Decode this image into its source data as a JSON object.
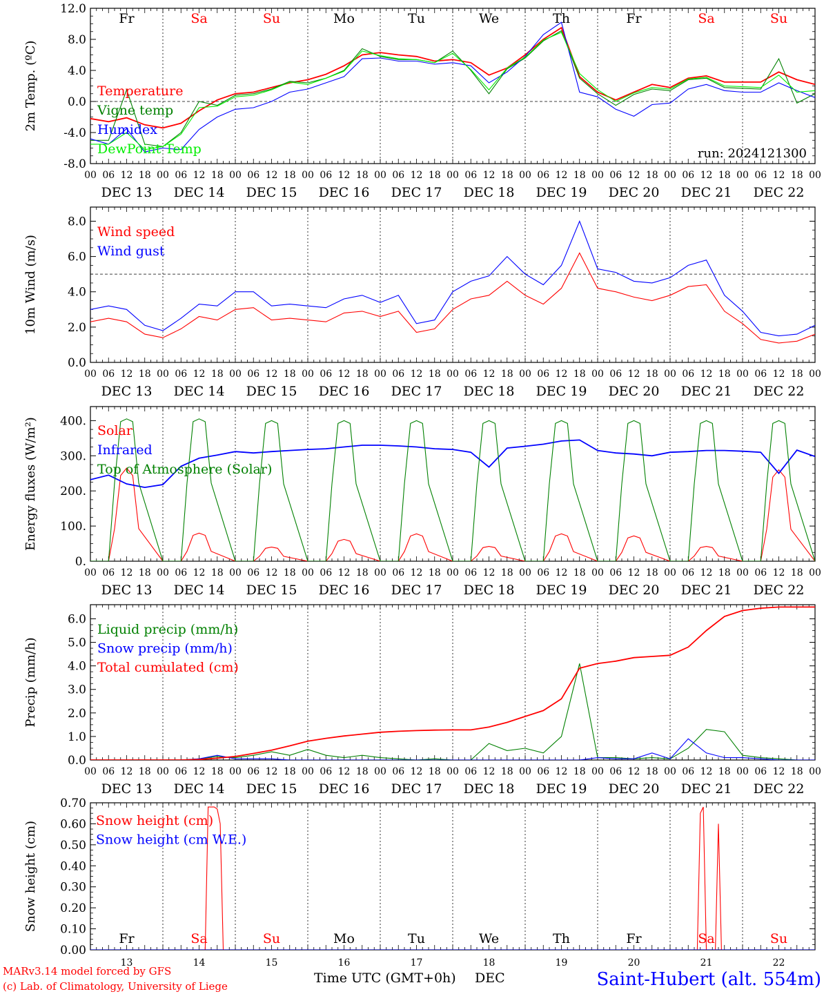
{
  "colors": {
    "red": "#ff0000",
    "green": "#008000",
    "blue": "#0000ff",
    "lime": "#00ee00",
    "axis": "#000000",
    "weekend": "#ff0000"
  },
  "days": {
    "names": [
      "Fr",
      "Sa",
      "Su",
      "Mo",
      "Tu",
      "We",
      "Th",
      "Fr",
      "Sa",
      "Su"
    ],
    "weekend_flags": [
      false,
      true,
      true,
      false,
      false,
      false,
      false,
      false,
      true,
      true
    ],
    "date_labels": [
      "DEC 13",
      "DEC 14",
      "DEC 15",
      "DEC 16",
      "DEC 17",
      "DEC 18",
      "DEC 19",
      "DEC 20",
      "DEC 21",
      "DEC 22"
    ],
    "day_numbers": [
      "13",
      "14",
      "15",
      "16",
      "17",
      "18",
      "19",
      "20",
      "21",
      "22"
    ],
    "hour_labels": [
      "00",
      "06",
      "12",
      "18"
    ],
    "final_hour_label": "00"
  },
  "footer": {
    "credit_line1": "MARv3.14 model forced by GFS",
    "credit_line2": "(c) Lab. of Climatology, University of Liege",
    "xlabel": "Time UTC (GMT+0h)",
    "month": "DEC",
    "station": "Saint-Hubert (alt. 554m)"
  },
  "chart_data": [
    {
      "type": "line",
      "id": "temp",
      "ylabel": "2m Temp. (ºC)",
      "ylim": [
        -8,
        12
      ],
      "yticks": [
        "-8.0",
        "-4.0",
        "0.0",
        "4.0",
        "8.0",
        "12.0"
      ],
      "yticks_values": [
        -8,
        -4,
        0,
        4,
        8,
        12
      ],
      "reference_line": 0,
      "annotation": "run: 2024121300",
      "x": [
        0,
        6,
        12,
        18,
        24,
        30,
        36,
        42,
        48,
        54,
        60,
        66,
        72,
        78,
        84,
        90,
        96,
        102,
        108,
        114,
        120,
        126,
        132,
        138,
        144,
        150,
        156,
        162,
        168,
        174,
        180,
        186,
        192,
        198,
        204,
        210,
        216,
        222,
        228,
        234,
        240
      ],
      "series": [
        {
          "name": "Temperature",
          "color": "#ff0000",
          "values": [
            -2.2,
            -2.6,
            -2.1,
            -3.0,
            -3.4,
            -2.8,
            -1.2,
            0.2,
            1.0,
            1.2,
            1.8,
            2.4,
            2.8,
            3.5,
            4.6,
            6.0,
            6.3,
            6.0,
            5.8,
            5.2,
            5.4,
            5.0,
            3.4,
            4.3,
            6.0,
            8.0,
            9.5,
            3.2,
            1.2,
            0.2,
            1.2,
            2.2,
            1.8,
            3.0,
            3.3,
            2.5,
            2.5,
            2.5,
            3.8,
            2.8,
            2.2
          ]
        },
        {
          "name": "Vigne temp",
          "color": "#008000",
          "values": [
            -5.0,
            -5.0,
            1.5,
            -5.5,
            -5.8,
            -4.0,
            0.0,
            -0.5,
            0.8,
            1.0,
            1.6,
            2.6,
            2.4,
            3.0,
            4.0,
            6.8,
            5.8,
            5.4,
            5.4,
            5.0,
            6.5,
            4.0,
            1.0,
            4.2,
            5.6,
            7.8,
            9.1,
            3.0,
            1.0,
            -0.5,
            0.9,
            1.6,
            1.4,
            2.8,
            3.0,
            1.8,
            1.7,
            1.6,
            5.5,
            -0.2,
            1.0
          ]
        },
        {
          "name": "Humidex",
          "color": "#0000ff",
          "values": [
            -4.8,
            -5.5,
            -3.5,
            -6.5,
            -6.0,
            -6.2,
            -3.6,
            -2.0,
            -1.0,
            -0.8,
            0.0,
            1.2,
            1.6,
            2.4,
            3.2,
            5.5,
            5.6,
            5.2,
            5.2,
            4.8,
            5.0,
            4.6,
            2.4,
            3.8,
            5.8,
            8.6,
            10.2,
            1.2,
            0.6,
            -1.0,
            -1.9,
            -0.4,
            -0.2,
            1.6,
            2.2,
            1.4,
            1.2,
            1.2,
            2.4,
            1.4,
            0.5
          ]
        },
        {
          "name": "DewPoint Temp",
          "color": "#00ee00",
          "values": [
            -5.5,
            -5.5,
            -4.0,
            -6.2,
            -5.8,
            -4.2,
            -0.8,
            -0.6,
            0.6,
            0.8,
            1.5,
            2.5,
            2.2,
            3.0,
            3.9,
            6.5,
            5.9,
            5.5,
            5.4,
            5.0,
            6.2,
            4.1,
            1.5,
            4.3,
            5.7,
            7.9,
            8.9,
            3.6,
            1.5,
            0.0,
            1.1,
            1.8,
            1.6,
            2.9,
            3.1,
            2.0,
            1.9,
            1.8,
            3.4,
            1.2,
            1.4
          ]
        }
      ]
    },
    {
      "type": "line",
      "id": "wind",
      "ylabel": "10m Wind (m/s)",
      "ylim": [
        0,
        8.8
      ],
      "yticks": [
        "0.0",
        "2.0",
        "4.0",
        "6.0",
        "8.0"
      ],
      "yticks_values": [
        0,
        2,
        4,
        6,
        8
      ],
      "reference_line": 5,
      "x": [
        0,
        6,
        12,
        18,
        24,
        30,
        36,
        42,
        48,
        54,
        60,
        66,
        72,
        78,
        84,
        90,
        96,
        102,
        108,
        114,
        120,
        126,
        132,
        138,
        144,
        150,
        156,
        162,
        168,
        174,
        180,
        186,
        192,
        198,
        204,
        210,
        216,
        222,
        228,
        234,
        240
      ],
      "series": [
        {
          "name": "Wind speed",
          "color": "#ff0000",
          "values": [
            2.3,
            2.5,
            2.3,
            1.6,
            1.4,
            1.9,
            2.6,
            2.4,
            3.0,
            3.1,
            2.4,
            2.5,
            2.4,
            2.3,
            2.8,
            2.9,
            2.6,
            2.9,
            1.7,
            1.9,
            3.0,
            3.6,
            3.8,
            4.6,
            3.8,
            3.3,
            4.2,
            6.2,
            4.2,
            4.0,
            3.7,
            3.5,
            3.8,
            4.3,
            4.4,
            2.9,
            2.2,
            1.3,
            1.1,
            1.2,
            1.6
          ]
        },
        {
          "name": "Wind gust",
          "color": "#0000ff",
          "values": [
            3.0,
            3.2,
            3.0,
            2.1,
            1.8,
            2.5,
            3.3,
            3.2,
            4.0,
            4.0,
            3.2,
            3.3,
            3.2,
            3.1,
            3.6,
            3.8,
            3.4,
            3.8,
            2.2,
            2.4,
            4.0,
            4.6,
            4.9,
            6.0,
            5.0,
            4.4,
            5.5,
            8.0,
            5.3,
            5.1,
            4.6,
            4.5,
            4.8,
            5.5,
            5.8,
            3.8,
            2.9,
            1.7,
            1.5,
            1.6,
            2.1
          ]
        }
      ]
    },
    {
      "type": "line",
      "id": "energy",
      "ylabel": "Energy fluxes (W/m²)",
      "ylim": [
        0,
        440
      ],
      "yticks": [
        "0.",
        "100.",
        "200.",
        "300.",
        "400."
      ],
      "yticks_values": [
        0,
        100,
        200,
        300,
        400
      ],
      "x_solar_shape": [
        0,
        6,
        8,
        10,
        12,
        14,
        16,
        24
      ],
      "series": [
        {
          "name": "Solar",
          "color": "#ff0000",
          "daily_peaks": [
            265,
            80,
            40,
            62,
            78,
            42,
            78,
            72,
            42,
            260
          ]
        },
        {
          "name": "Infrared",
          "color": "#0000ff",
          "x": [
            0,
            6,
            12,
            18,
            24,
            30,
            36,
            42,
            48,
            54,
            60,
            66,
            72,
            78,
            84,
            90,
            96,
            102,
            108,
            114,
            120,
            126,
            132,
            138,
            144,
            150,
            156,
            162,
            168,
            174,
            180,
            186,
            192,
            198,
            204,
            210,
            216,
            222,
            228,
            234,
            240
          ],
          "values": [
            232,
            245,
            220,
            210,
            218,
            270,
            293,
            302,
            312,
            308,
            312,
            315,
            318,
            320,
            325,
            330,
            330,
            328,
            325,
            320,
            318,
            310,
            268,
            322,
            327,
            333,
            342,
            345,
            315,
            308,
            305,
            300,
            310,
            312,
            315,
            315,
            313,
            310,
            250,
            316,
            298
          ]
        },
        {
          "name": "Top of Atmosphere (Solar)",
          "color": "#008000",
          "daily_peaks": [
            405,
            405,
            400,
            400,
            400,
            400,
            400,
            400,
            400,
            400
          ]
        }
      ]
    },
    {
      "type": "line",
      "id": "precip",
      "ylabel": "Precip (mm/h)",
      "ylim": [
        0,
        6.6
      ],
      "yticks": [
        "0.0",
        "1.0",
        "2.0",
        "3.0",
        "4.0",
        "5.0",
        "6.0"
      ],
      "yticks_values": [
        0,
        1,
        2,
        3,
        4,
        5,
        6
      ],
      "x": [
        0,
        6,
        12,
        18,
        24,
        30,
        36,
        42,
        48,
        54,
        60,
        66,
        72,
        78,
        84,
        90,
        96,
        102,
        108,
        114,
        120,
        126,
        132,
        138,
        144,
        150,
        156,
        162,
        168,
        174,
        180,
        186,
        192,
        198,
        204,
        210,
        216,
        222,
        228,
        234,
        240
      ],
      "series": [
        {
          "name": "Liquid precip (mm/h)",
          "color": "#008000",
          "values": [
            0,
            0,
            0,
            0,
            0,
            0,
            0.05,
            0.15,
            0.1,
            0.2,
            0.35,
            0.2,
            0.45,
            0.2,
            0.1,
            0.2,
            0.1,
            0.05,
            0.0,
            0.05,
            0.0,
            0.0,
            0.7,
            0.4,
            0.5,
            0.3,
            1.0,
            4.1,
            0.1,
            0.1,
            0.05,
            0.1,
            0.05,
            0.5,
            1.3,
            1.2,
            0.2,
            0.1,
            0.05,
            0.0,
            0.0
          ]
        },
        {
          "name": "Snow precip (mm/h)",
          "color": "#0000ff",
          "values": [
            0,
            0,
            0,
            0,
            0,
            0,
            0.05,
            0.2,
            0.05,
            0.05,
            0.05,
            0.0,
            0.0,
            0.0,
            0.0,
            0.0,
            0.0,
            0.0,
            0.0,
            0.0,
            0.0,
            0.0,
            0.0,
            0.0,
            0.0,
            0.0,
            0.0,
            0.0,
            0.1,
            0.05,
            0.05,
            0.3,
            0.05,
            0.9,
            0.3,
            0.1,
            0.1,
            0.05,
            0.0,
            0.0,
            0.0
          ]
        },
        {
          "name": "Total cumulated (cm)",
          "color": "#ff0000",
          "values": [
            0,
            0,
            0,
            0,
            0,
            0,
            0.02,
            0.08,
            0.15,
            0.28,
            0.42,
            0.6,
            0.8,
            0.92,
            1.02,
            1.1,
            1.18,
            1.22,
            1.25,
            1.27,
            1.28,
            1.28,
            1.4,
            1.6,
            1.85,
            2.1,
            2.6,
            3.9,
            4.1,
            4.2,
            4.35,
            4.4,
            4.45,
            4.8,
            5.5,
            6.1,
            6.35,
            6.45,
            6.5,
            6.5,
            6.5
          ]
        }
      ]
    },
    {
      "type": "line",
      "id": "snow",
      "ylabel": "Snow height (cm)",
      "ylim": [
        0,
        0.7
      ],
      "yticks": [
        "0.00",
        "0.10",
        "0.20",
        "0.30",
        "0.40",
        "0.50",
        "0.60",
        "0.70"
      ],
      "yticks_values": [
        0,
        0.1,
        0.2,
        0.3,
        0.4,
        0.5,
        0.6,
        0.7
      ],
      "series": [
        {
          "name": "Snow height (cm)",
          "color": "#ff0000",
          "x": [
            0,
            38,
            39,
            41,
            42,
            43,
            44,
            45,
            200,
            201,
            202,
            203,
            204,
            205,
            206,
            207,
            208,
            209,
            210,
            240
          ],
          "values": [
            0,
            0,
            0.68,
            0.68,
            0.67,
            0.6,
            0.0,
            0,
            0,
            0,
            0.65,
            0.68,
            0.0,
            0,
            0,
            0,
            0.6,
            0,
            0,
            0
          ]
        },
        {
          "name": "Snow height (cm W.E.)",
          "color": "#0000ff",
          "x": [
            0,
            240
          ],
          "values": [
            0,
            0
          ]
        }
      ]
    }
  ]
}
